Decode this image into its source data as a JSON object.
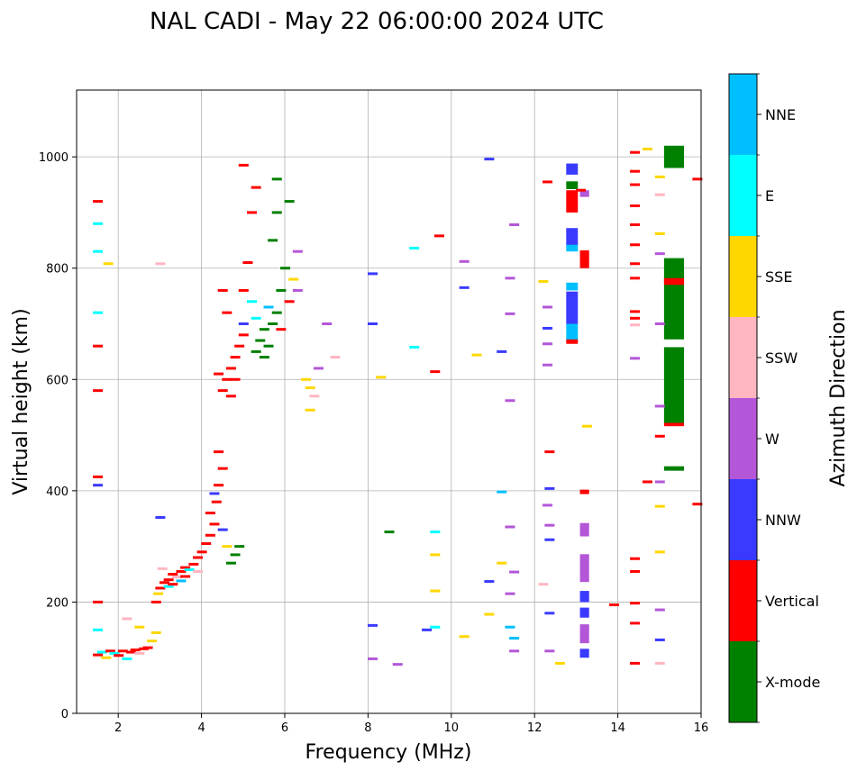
{
  "chart_data": {
    "type": "scatter",
    "title": "NAL CADI - May 22 06:00:00 2024 UTC",
    "xlabel": "Frequency (MHz)",
    "ylabel": "Virtual height (km)",
    "xlim": [
      1,
      16
    ],
    "ylim": [
      0,
      1120
    ],
    "xticks": [
      2,
      4,
      6,
      8,
      10,
      12,
      14,
      16
    ],
    "yticks": [
      0,
      200,
      400,
      600,
      800,
      1000
    ],
    "grid": true,
    "colorbar": {
      "label": "Azimuth Direction",
      "entries": [
        {
          "name": "X-mode",
          "color": "#008000"
        },
        {
          "name": "Vertical",
          "color": "#ff0000"
        },
        {
          "name": "NNW",
          "color": "#3a3aff"
        },
        {
          "name": "W",
          "color": "#b456d8"
        },
        {
          "name": "SSW",
          "color": "#ffb6c1"
        },
        {
          "name": "SSE",
          "color": "#ffd700"
        },
        {
          "name": "E",
          "color": "#00ffff"
        },
        {
          "name": "NNE",
          "color": "#00bfff"
        }
      ]
    },
    "columns": [
      {
        "f": 12.9,
        "w": 0.28,
        "segments": [
          {
            "lo": 968,
            "hi": 988,
            "c": "NNW"
          },
          {
            "lo": 942,
            "hi": 956,
            "c": "X-mode"
          },
          {
            "lo": 900,
            "hi": 940,
            "c": "Vertical"
          },
          {
            "lo": 840,
            "hi": 872,
            "c": "NNW"
          },
          {
            "lo": 830,
            "hi": 842,
            "c": "NNE"
          },
          {
            "lo": 760,
            "hi": 774,
            "c": "NNE"
          },
          {
            "lo": 700,
            "hi": 758,
            "c": "NNW"
          },
          {
            "lo": 670,
            "hi": 700,
            "c": "NNE"
          },
          {
            "lo": 664,
            "hi": 672,
            "c": "Vertical"
          }
        ]
      },
      {
        "f": 13.2,
        "w": 0.22,
        "segments": [
          {
            "lo": 928,
            "hi": 940,
            "c": "W"
          },
          {
            "lo": 800,
            "hi": 832,
            "c": "Vertical"
          },
          {
            "lo": 394,
            "hi": 402,
            "c": "Vertical"
          },
          {
            "lo": 318,
            "hi": 342,
            "c": "W"
          },
          {
            "lo": 236,
            "hi": 286,
            "c": "W"
          },
          {
            "lo": 200,
            "hi": 220,
            "c": "NNW"
          },
          {
            "lo": 172,
            "hi": 190,
            "c": "NNW"
          },
          {
            "lo": 126,
            "hi": 160,
            "c": "W"
          },
          {
            "lo": 100,
            "hi": 116,
            "c": "NNW"
          }
        ]
      },
      {
        "f": 15.35,
        "w": 0.48,
        "segments": [
          {
            "lo": 980,
            "hi": 1020,
            "c": "X-mode"
          },
          {
            "lo": 672,
            "hi": 818,
            "c": "X-mode"
          },
          {
            "lo": 770,
            "hi": 782,
            "c": "Vertical"
          },
          {
            "lo": 520,
            "hi": 658,
            "c": "X-mode"
          },
          {
            "lo": 516,
            "hi": 522,
            "c": "Vertical"
          },
          {
            "lo": 436,
            "hi": 444,
            "c": "X-mode"
          }
        ]
      }
    ],
    "echoes": [
      {
        "f": 1.5,
        "h": 105,
        "c": "Vertical"
      },
      {
        "f": 1.6,
        "h": 110,
        "c": "E"
      },
      {
        "f": 1.7,
        "h": 100,
        "c": "SSE"
      },
      {
        "f": 1.8,
        "h": 112,
        "c": "Vertical"
      },
      {
        "f": 1.9,
        "h": 108,
        "c": "E"
      },
      {
        "f": 2.0,
        "h": 104,
        "c": "Vertical"
      },
      {
        "f": 2.1,
        "h": 112,
        "c": "Vertical"
      },
      {
        "f": 2.2,
        "h": 98,
        "c": "E"
      },
      {
        "f": 2.3,
        "h": 110,
        "c": "Vertical"
      },
      {
        "f": 2.4,
        "h": 114,
        "c": "Vertical"
      },
      {
        "f": 2.5,
        "h": 108,
        "c": "SSW"
      },
      {
        "f": 2.6,
        "h": 116,
        "c": "Vertical"
      },
      {
        "f": 2.7,
        "h": 118,
        "c": "Vertical"
      },
      {
        "f": 2.8,
        "h": 130,
        "c": "SSE"
      },
      {
        "f": 2.9,
        "h": 145,
        "c": "SSE"
      },
      {
        "f": 1.5,
        "h": 150,
        "c": "E"
      },
      {
        "f": 2.2,
        "h": 170,
        "c": "SSW"
      },
      {
        "f": 2.5,
        "h": 155,
        "c": "SSE"
      },
      {
        "f": 3.0,
        "h": 225,
        "c": "Vertical"
      },
      {
        "f": 3.1,
        "h": 235,
        "c": "Vertical"
      },
      {
        "f": 3.2,
        "h": 240,
        "c": "Vertical"
      },
      {
        "f": 3.3,
        "h": 250,
        "c": "Vertical"
      },
      {
        "f": 3.4,
        "h": 245,
        "c": "SSW"
      },
      {
        "f": 3.5,
        "h": 255,
        "c": "Vertical"
      },
      {
        "f": 3.6,
        "h": 262,
        "c": "Vertical"
      },
      {
        "f": 3.7,
        "h": 258,
        "c": "E"
      },
      {
        "f": 3.8,
        "h": 268,
        "c": "Vertical"
      },
      {
        "f": 3.9,
        "h": 280,
        "c": "Vertical"
      },
      {
        "f": 3.2,
        "h": 228,
        "c": "E"
      },
      {
        "f": 3.5,
        "h": 238,
        "c": "NNE"
      },
      {
        "f": 3.05,
        "h": 260,
        "c": "SSW"
      },
      {
        "f": 3.3,
        "h": 232,
        "c": "Vertical"
      },
      {
        "f": 3.6,
        "h": 246,
        "c": "Vertical"
      },
      {
        "f": 3.9,
        "h": 255,
        "c": "SSW"
      },
      {
        "f": 2.9,
        "h": 200,
        "c": "Vertical"
      },
      {
        "f": 2.95,
        "h": 215,
        "c": "SSE"
      },
      {
        "f": 4.0,
        "h": 290,
        "c": "Vertical"
      },
      {
        "f": 4.1,
        "h": 305,
        "c": "Vertical"
      },
      {
        "f": 4.2,
        "h": 320,
        "c": "Vertical"
      },
      {
        "f": 4.3,
        "h": 340,
        "c": "Vertical"
      },
      {
        "f": 4.2,
        "h": 360,
        "c": "Vertical"
      },
      {
        "f": 4.35,
        "h": 380,
        "c": "Vertical"
      },
      {
        "f": 4.4,
        "h": 410,
        "c": "Vertical"
      },
      {
        "f": 4.5,
        "h": 440,
        "c": "Vertical"
      },
      {
        "f": 4.4,
        "h": 470,
        "c": "Vertical"
      },
      {
        "f": 4.3,
        "h": 395,
        "c": "NNW"
      },
      {
        "f": 4.5,
        "h": 330,
        "c": "NNW"
      },
      {
        "f": 4.6,
        "h": 300,
        "c": "SSE"
      },
      {
        "f": 4.8,
        "h": 285,
        "c": "X-mode"
      },
      {
        "f": 4.9,
        "h": 300,
        "c": "X-mode"
      },
      {
        "f": 4.7,
        "h": 270,
        "c": "X-mode"
      },
      {
        "f": 4.5,
        "h": 580,
        "c": "Vertical"
      },
      {
        "f": 4.6,
        "h": 600,
        "c": "Vertical"
      },
      {
        "f": 4.7,
        "h": 620,
        "c": "Vertical"
      },
      {
        "f": 4.8,
        "h": 640,
        "c": "Vertical"
      },
      {
        "f": 4.9,
        "h": 660,
        "c": "Vertical"
      },
      {
        "f": 5.0,
        "h": 680,
        "c": "Vertical"
      },
      {
        "f": 4.6,
        "h": 720,
        "c": "Vertical"
      },
      {
        "f": 4.5,
        "h": 760,
        "c": "Vertical"
      },
      {
        "f": 4.8,
        "h": 600,
        "c": "Vertical"
      },
      {
        "f": 4.4,
        "h": 610,
        "c": "Vertical"
      },
      {
        "f": 4.7,
        "h": 570,
        "c": "Vertical"
      },
      {
        "f": 5.0,
        "h": 700,
        "c": "NNW"
      },
      {
        "f": 5.3,
        "h": 650,
        "c": "X-mode"
      },
      {
        "f": 5.4,
        "h": 670,
        "c": "X-mode"
      },
      {
        "f": 5.5,
        "h": 690,
        "c": "X-mode"
      },
      {
        "f": 5.6,
        "h": 660,
        "c": "X-mode"
      },
      {
        "f": 5.7,
        "h": 700,
        "c": "X-mode"
      },
      {
        "f": 5.5,
        "h": 640,
        "c": "X-mode"
      },
      {
        "f": 5.8,
        "h": 720,
        "c": "X-mode"
      },
      {
        "f": 5.9,
        "h": 760,
        "c": "X-mode"
      },
      {
        "f": 6.0,
        "h": 800,
        "c": "X-mode"
      },
      {
        "f": 5.7,
        "h": 850,
        "c": "X-mode"
      },
      {
        "f": 5.8,
        "h": 900,
        "c": "X-mode"
      },
      {
        "f": 5.8,
        "h": 960,
        "c": "X-mode"
      },
      {
        "f": 6.1,
        "h": 920,
        "c": "X-mode"
      },
      {
        "f": 5.3,
        "h": 710,
        "c": "E"
      },
      {
        "f": 5.6,
        "h": 730,
        "c": "NNE"
      },
      {
        "f": 5.2,
        "h": 740,
        "c": "E"
      },
      {
        "f": 5.9,
        "h": 690,
        "c": "Vertical"
      },
      {
        "f": 6.1,
        "h": 740,
        "c": "Vertical"
      },
      {
        "f": 5.0,
        "h": 760,
        "c": "Vertical"
      },
      {
        "f": 5.1,
        "h": 810,
        "c": "Vertical"
      },
      {
        "f": 5.2,
        "h": 900,
        "c": "Vertical"
      },
      {
        "f": 5.3,
        "h": 945,
        "c": "Vertical"
      },
      {
        "f": 5.0,
        "h": 985,
        "c": "Vertical"
      },
      {
        "f": 6.2,
        "h": 780,
        "c": "SSE"
      },
      {
        "f": 6.3,
        "h": 760,
        "c": "W"
      },
      {
        "f": 6.5,
        "h": 600,
        "c": "SSE"
      },
      {
        "f": 6.6,
        "h": 585,
        "c": "SSE"
      },
      {
        "f": 6.7,
        "h": 570,
        "c": "SSW"
      },
      {
        "f": 6.6,
        "h": 545,
        "c": "SSE"
      },
      {
        "f": 6.8,
        "h": 620,
        "c": "W"
      },
      {
        "f": 7.0,
        "h": 700,
        "c": "W"
      },
      {
        "f": 7.2,
        "h": 640,
        "c": "SSW"
      },
      {
        "f": 6.3,
        "h": 830,
        "c": "W"
      },
      {
        "f": 1.5,
        "h": 920,
        "c": "Vertical"
      },
      {
        "f": 1.5,
        "h": 880,
        "c": "E"
      },
      {
        "f": 1.5,
        "h": 830,
        "c": "E"
      },
      {
        "f": 1.5,
        "h": 720,
        "c": "E"
      },
      {
        "f": 1.5,
        "h": 660,
        "c": "Vertical"
      },
      {
        "f": 1.5,
        "h": 580,
        "c": "Vertical"
      },
      {
        "f": 1.5,
        "h": 425,
        "c": "Vertical"
      },
      {
        "f": 1.5,
        "h": 410,
        "c": "NNW"
      },
      {
        "f": 1.5,
        "h": 200,
        "c": "Vertical"
      },
      {
        "f": 1.75,
        "h": 808,
        "c": "SSE"
      },
      {
        "f": 3.0,
        "h": 808,
        "c": "SSW"
      },
      {
        "f": 3.0,
        "h": 352,
        "c": "NNW"
      },
      {
        "f": 8.1,
        "h": 790,
        "c": "NNW"
      },
      {
        "f": 8.1,
        "h": 700,
        "c": "NNW"
      },
      {
        "f": 8.3,
        "h": 604,
        "c": "SSE"
      },
      {
        "f": 8.5,
        "h": 326,
        "c": "X-mode"
      },
      {
        "f": 8.1,
        "h": 158,
        "c": "NNW"
      },
      {
        "f": 8.1,
        "h": 98,
        "c": "W"
      },
      {
        "f": 8.7,
        "h": 88,
        "c": "W"
      },
      {
        "f": 9.1,
        "h": 836,
        "c": "E"
      },
      {
        "f": 9.1,
        "h": 658,
        "c": "E"
      },
      {
        "f": 9.6,
        "h": 614,
        "c": "Vertical"
      },
      {
        "f": 9.7,
        "h": 858,
        "c": "Vertical"
      },
      {
        "f": 9.6,
        "h": 326,
        "c": "E"
      },
      {
        "f": 9.6,
        "h": 285,
        "c": "SSE"
      },
      {
        "f": 9.6,
        "h": 220,
        "c": "SSE"
      },
      {
        "f": 9.6,
        "h": 155,
        "c": "E"
      },
      {
        "f": 9.4,
        "h": 150,
        "c": "NNW"
      },
      {
        "f": 10.3,
        "h": 812,
        "c": "W"
      },
      {
        "f": 10.3,
        "h": 765,
        "c": "NNW"
      },
      {
        "f": 10.6,
        "h": 644,
        "c": "SSE"
      },
      {
        "f": 10.9,
        "h": 996,
        "c": "NNW"
      },
      {
        "f": 10.3,
        "h": 138,
        "c": "SSE"
      },
      {
        "f": 10.9,
        "h": 178,
        "c": "SSE"
      },
      {
        "f": 10.9,
        "h": 237,
        "c": "NNW"
      },
      {
        "f": 11.2,
        "h": 270,
        "c": "SSE"
      },
      {
        "f": 11.2,
        "h": 398,
        "c": "NNE"
      },
      {
        "f": 11.2,
        "h": 650,
        "c": "NNW"
      },
      {
        "f": 11.4,
        "h": 782,
        "c": "W"
      },
      {
        "f": 11.4,
        "h": 718,
        "c": "W"
      },
      {
        "f": 11.5,
        "h": 878,
        "c": "W"
      },
      {
        "f": 11.4,
        "h": 562,
        "c": "W"
      },
      {
        "f": 11.4,
        "h": 335,
        "c": "W"
      },
      {
        "f": 11.5,
        "h": 254,
        "c": "W"
      },
      {
        "f": 11.4,
        "h": 215,
        "c": "W"
      },
      {
        "f": 11.4,
        "h": 155,
        "c": "NNE"
      },
      {
        "f": 11.5,
        "h": 135,
        "c": "NNE"
      },
      {
        "f": 11.5,
        "h": 112,
        "c": "W"
      },
      {
        "f": 12.3,
        "h": 955,
        "c": "Vertical"
      },
      {
        "f": 12.2,
        "h": 776,
        "c": "SSE"
      },
      {
        "f": 12.3,
        "h": 730,
        "c": "W"
      },
      {
        "f": 12.3,
        "h": 692,
        "c": "NNW"
      },
      {
        "f": 12.3,
        "h": 664,
        "c": "W"
      },
      {
        "f": 12.3,
        "h": 626,
        "c": "W"
      },
      {
        "f": 12.35,
        "h": 470,
        "c": "Vertical"
      },
      {
        "f": 12.35,
        "h": 404,
        "c": "NNW"
      },
      {
        "f": 12.3,
        "h": 374,
        "c": "W"
      },
      {
        "f": 12.35,
        "h": 338,
        "c": "W"
      },
      {
        "f": 12.35,
        "h": 312,
        "c": "NNW"
      },
      {
        "f": 12.2,
        "h": 232,
        "c": "SSW"
      },
      {
        "f": 12.35,
        "h": 180,
        "c": "NNW"
      },
      {
        "f": 12.35,
        "h": 112,
        "c": "W"
      },
      {
        "f": 12.6,
        "h": 90,
        "c": "SSE"
      },
      {
        "f": 13.25,
        "h": 516,
        "c": "SSE"
      },
      {
        "f": 13.1,
        "h": 940,
        "c": "Vertical"
      },
      {
        "f": 13.9,
        "h": 195,
        "c": "Vertical"
      },
      {
        "f": 14.4,
        "h": 1008,
        "c": "Vertical"
      },
      {
        "f": 14.4,
        "h": 974,
        "c": "Vertical"
      },
      {
        "f": 14.4,
        "h": 950,
        "c": "Vertical"
      },
      {
        "f": 14.4,
        "h": 912,
        "c": "Vertical"
      },
      {
        "f": 14.4,
        "h": 878,
        "c": "Vertical"
      },
      {
        "f": 14.4,
        "h": 842,
        "c": "Vertical"
      },
      {
        "f": 14.4,
        "h": 808,
        "c": "Vertical"
      },
      {
        "f": 14.4,
        "h": 782,
        "c": "Vertical"
      },
      {
        "f": 14.4,
        "h": 722,
        "c": "Vertical"
      },
      {
        "f": 14.4,
        "h": 710,
        "c": "Vertical"
      },
      {
        "f": 14.4,
        "h": 698,
        "c": "SSW"
      },
      {
        "f": 14.4,
        "h": 638,
        "c": "W"
      },
      {
        "f": 14.4,
        "h": 278,
        "c": "Vertical"
      },
      {
        "f": 14.4,
        "h": 255,
        "c": "Vertical"
      },
      {
        "f": 14.4,
        "h": 198,
        "c": "Vertical"
      },
      {
        "f": 14.4,
        "h": 162,
        "c": "Vertical"
      },
      {
        "f": 14.4,
        "h": 90,
        "c": "Vertical"
      },
      {
        "f": 14.7,
        "h": 1014,
        "c": "SSE"
      },
      {
        "f": 14.7,
        "h": 416,
        "c": "Vertical"
      },
      {
        "f": 15.0,
        "h": 964,
        "c": "SSE"
      },
      {
        "f": 15.0,
        "h": 932,
        "c": "SSW"
      },
      {
        "f": 15.0,
        "h": 862,
        "c": "SSE"
      },
      {
        "f": 15.0,
        "h": 826,
        "c": "W"
      },
      {
        "f": 15.0,
        "h": 700,
        "c": "W"
      },
      {
        "f": 15.0,
        "h": 552,
        "c": "W"
      },
      {
        "f": 15.0,
        "h": 498,
        "c": "Vertical"
      },
      {
        "f": 15.0,
        "h": 416,
        "c": "W"
      },
      {
        "f": 15.0,
        "h": 372,
        "c": "SSE"
      },
      {
        "f": 15.0,
        "h": 290,
        "c": "SSE"
      },
      {
        "f": 15.0,
        "h": 186,
        "c": "W"
      },
      {
        "f": 15.0,
        "h": 132,
        "c": "NNW"
      },
      {
        "f": 15.0,
        "h": 90,
        "c": "SSW"
      },
      {
        "f": 15.9,
        "h": 960,
        "c": "Vertical"
      },
      {
        "f": 15.9,
        "h": 376,
        "c": "Vertical"
      }
    ]
  }
}
